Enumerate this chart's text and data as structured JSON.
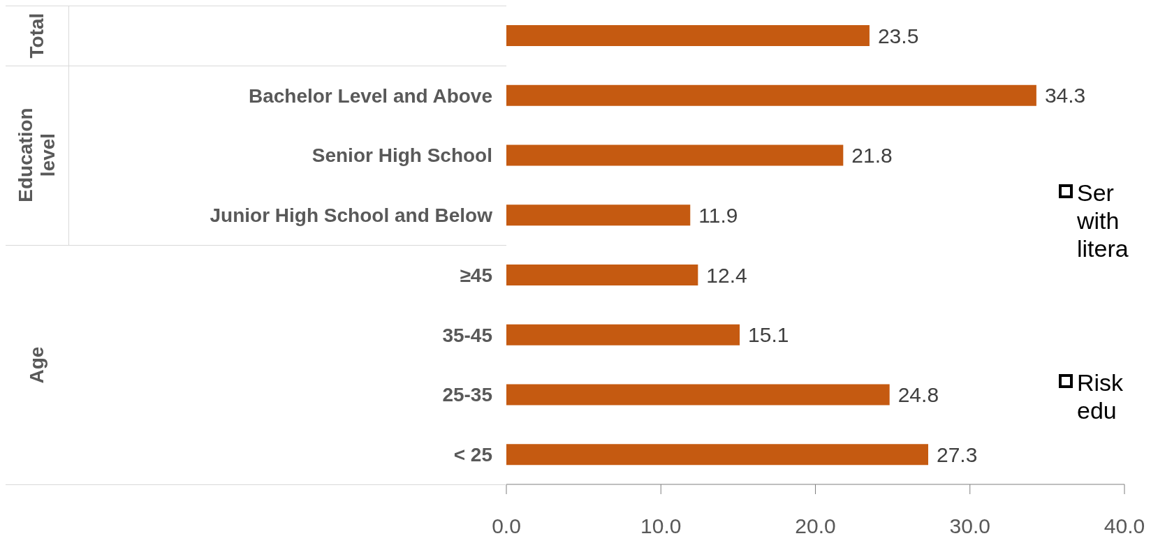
{
  "chart_data": {
    "type": "bar",
    "orientation": "horizontal",
    "categories": [
      null,
      "Bachelor Level and Above",
      "Senior High School",
      "Junior High School and Below",
      "≥45",
      "35-45",
      "25-35",
      "< 25"
    ],
    "values": [
      23.5,
      34.3,
      21.8,
      11.9,
      12.4,
      15.1,
      24.8,
      27.3
    ],
    "color": "#c55a11",
    "xlim": [
      0,
      40
    ],
    "xticks": [
      {
        "value": 0,
        "label": "0.0"
      },
      {
        "value": 10,
        "label": "10.0"
      },
      {
        "value": 20,
        "label": "20.0"
      },
      {
        "value": 30,
        "label": "30.0"
      },
      {
        "value": 40,
        "label": "40.0"
      }
    ],
    "grid": false,
    "data_labels": true,
    "annotations": [
      "Total",
      "Education level",
      "Age",
      "Ser with litera",
      "Risk edu"
    ]
  }
}
